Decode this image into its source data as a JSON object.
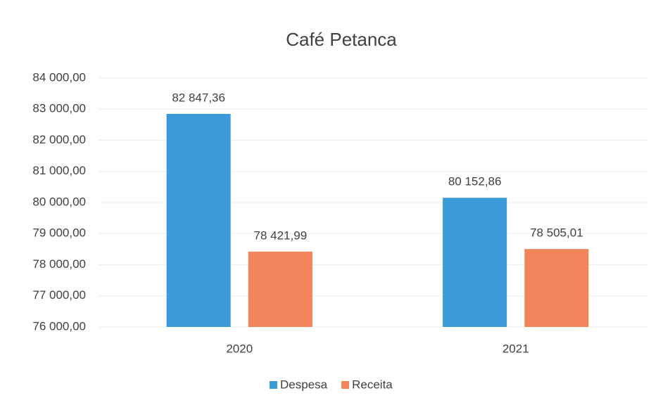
{
  "chart_data": {
    "type": "bar",
    "title": "Café Petanca",
    "categories": [
      "2020",
      "2021"
    ],
    "series": [
      {
        "name": "Despesa",
        "color": "#3b9ad9",
        "values": [
          82847.36,
          80152.86
        ],
        "value_labels": [
          "82 847,36",
          "80 152,86"
        ]
      },
      {
        "name": "Receita",
        "color": "#f3845a",
        "values": [
          78421.99,
          78505.01
        ],
        "value_labels": [
          "78 421,99",
          "78 505,01"
        ]
      }
    ],
    "ylim": [
      76000,
      84000
    ],
    "yticks": [
      {
        "value": 76000,
        "label": "76 000,00"
      },
      {
        "value": 77000,
        "label": "77 000,00"
      },
      {
        "value": 78000,
        "label": "78 000,00"
      },
      {
        "value": 79000,
        "label": "79 000,00"
      },
      {
        "value": 80000,
        "label": "80 000,00"
      },
      {
        "value": 81000,
        "label": "81 000,00"
      },
      {
        "value": 82000,
        "label": "82 000,00"
      },
      {
        "value": 83000,
        "label": "83 000,00"
      },
      {
        "value": 84000,
        "label": "84 000,00"
      }
    ],
    "grid": true,
    "legend": "bottom"
  }
}
